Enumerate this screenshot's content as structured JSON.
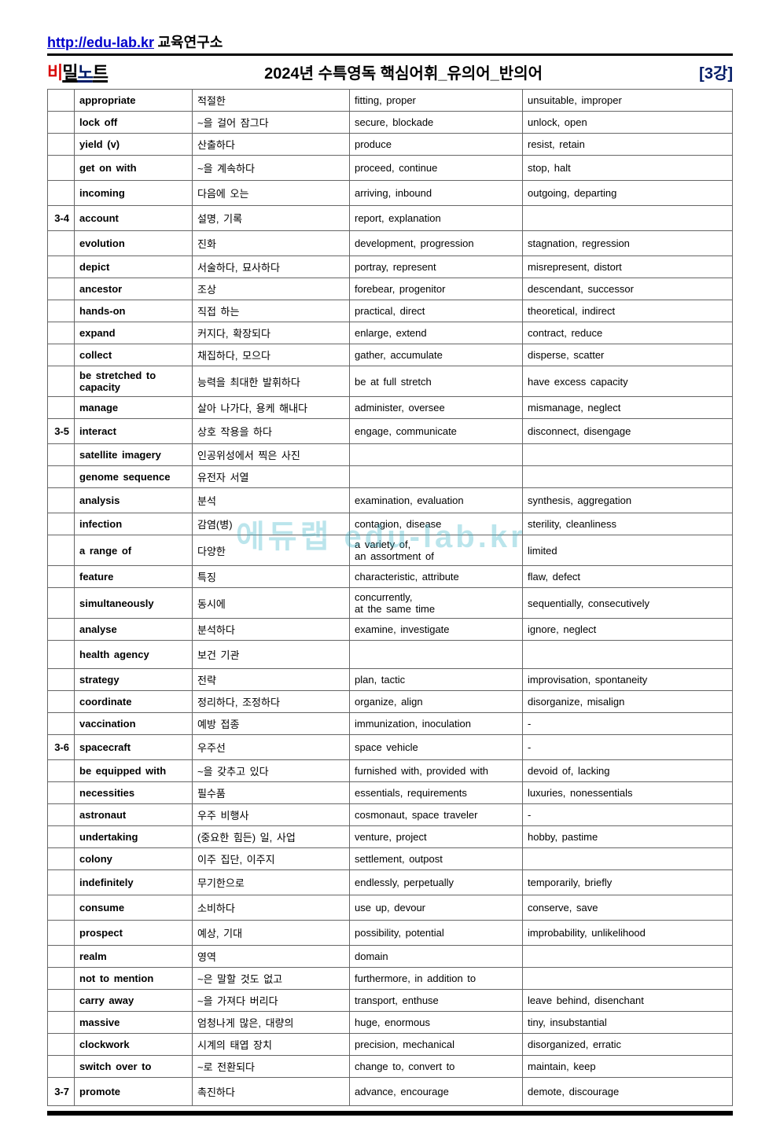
{
  "header": {
    "url": "http://edu-lab.kr",
    "suffix": " 교육연구소",
    "logo_parts": [
      "비",
      "밀",
      "노",
      "트"
    ],
    "title": "2024년  수특영독   핵심어휘_유의어_반의어",
    "badge": "[3강]"
  },
  "watermark": "에듀랩 edu-lab.kr",
  "rows": [
    {
      "idx": "",
      "eng": "appropriate",
      "kor": "적절한",
      "syn": "fitting, proper",
      "ant": "unsuitable, improper",
      "h": ""
    },
    {
      "idx": "",
      "eng": "lock off",
      "kor": "~을 걸어 잠그다",
      "syn": "secure, blockade",
      "ant": "unlock, open",
      "h": ""
    },
    {
      "idx": "",
      "eng": "yield (v)",
      "kor": "산출하다",
      "syn": "produce",
      "ant": "resist, retain",
      "h": ""
    },
    {
      "idx": "",
      "eng": "get on with",
      "kor": "~을 계속하다",
      "syn": "proceed, continue",
      "ant": "stop, halt",
      "h": "tall"
    },
    {
      "idx": "",
      "eng": "incoming",
      "kor": "다음에 오는",
      "syn": "arriving, inbound",
      "ant": "outgoing, departing",
      "h": "tall"
    },
    {
      "idx": "3-4",
      "eng": "account",
      "kor": "설명, 기록",
      "syn": "report, explanation",
      "ant": "",
      "h": "tall"
    },
    {
      "idx": "",
      "eng": "evolution",
      "kor": "진화",
      "syn": "development, progression",
      "ant": "stagnation, regression",
      "h": "tall"
    },
    {
      "idx": "",
      "eng": "depict",
      "kor": "서술하다, 묘사하다",
      "syn": "portray, represent",
      "ant": "misrepresent, distort",
      "h": ""
    },
    {
      "idx": "",
      "eng": "ancestor",
      "kor": "조상",
      "syn": "forebear, progenitor",
      "ant": "descendant, successor",
      "h": ""
    },
    {
      "idx": "",
      "eng": "hands-on",
      "kor": "직접 하는",
      "syn": "practical, direct",
      "ant": "theoretical, indirect",
      "h": ""
    },
    {
      "idx": "",
      "eng": "expand",
      "kor": "커지다, 확장되다",
      "syn": "enlarge, extend",
      "ant": "contract, reduce",
      "h": ""
    },
    {
      "idx": "",
      "eng": "collect",
      "kor": "채집하다, 모으다",
      "syn": "gather, accumulate",
      "ant": "disperse, scatter",
      "h": ""
    },
    {
      "idx": "",
      "eng": "be stretched to capacity",
      "kor": "능력을 최대한 발휘하다",
      "syn": "be at full stretch",
      "ant": "have excess capacity",
      "h": "tall"
    },
    {
      "idx": "",
      "eng": "manage",
      "kor": "살아 나가다, 용케 해내다",
      "syn": "administer, oversee",
      "ant": "mismanage, neglect",
      "h": ""
    },
    {
      "idx": "3-5",
      "eng": "interact",
      "kor": "상호 작용을 하다",
      "syn": "engage, communicate",
      "ant": "disconnect, disengage",
      "h": "tall"
    },
    {
      "idx": "",
      "eng": "satellite imagery",
      "kor": "인공위성에서 찍은 사진",
      "syn": "",
      "ant": "",
      "h": ""
    },
    {
      "idx": "",
      "eng": "genome sequence",
      "kor": "유전자 서열",
      "syn": "",
      "ant": "",
      "h": ""
    },
    {
      "idx": "",
      "eng": "analysis",
      "kor": "분석",
      "syn": "examination, evaluation",
      "ant": "synthesis, aggregation",
      "h": "tall"
    },
    {
      "idx": "",
      "eng": "infection",
      "kor": "감염(병)",
      "syn": "contagion, disease",
      "ant": "sterility, cleanliness",
      "h": ""
    },
    {
      "idx": "",
      "eng": "a range of",
      "kor": "다양한",
      "syn": "a variety of,\nan assortment of",
      "ant": "limited",
      "h": "tall"
    },
    {
      "idx": "",
      "eng": "feature",
      "kor": "특징",
      "syn": "characteristic, attribute",
      "ant": "flaw, defect",
      "h": ""
    },
    {
      "idx": "",
      "eng": "simultaneously",
      "kor": "동시에",
      "syn": "concurrently,\nat the same time",
      "ant": "sequentially, consecutively",
      "h": "tall"
    },
    {
      "idx": "",
      "eng": "analyse",
      "kor": "분석하다",
      "syn": "examine, investigate",
      "ant": "ignore, neglect",
      "h": ""
    },
    {
      "idx": "",
      "eng": "health agency",
      "kor": "보건 기관",
      "syn": "",
      "ant": "",
      "h": "xtall"
    },
    {
      "idx": "",
      "eng": "strategy",
      "kor": "전략",
      "syn": "plan, tactic",
      "ant": "improvisation, spontaneity",
      "h": ""
    },
    {
      "idx": "",
      "eng": "coordinate",
      "kor": "정리하다, 조정하다",
      "syn": "organize, align",
      "ant": "disorganize, misalign",
      "h": ""
    },
    {
      "idx": "",
      "eng": "vaccination",
      "kor": "예방 접종",
      "syn": "immunization, inoculation",
      "ant": "-",
      "h": ""
    },
    {
      "idx": "3-6",
      "eng": "spacecraft",
      "kor": "우주선",
      "syn": "space vehicle",
      "ant": "-",
      "h": "tall"
    },
    {
      "idx": "",
      "eng": "be equipped with",
      "kor": "~을 갖추고 있다",
      "syn": "furnished with, provided with",
      "ant": "devoid of, lacking",
      "h": ""
    },
    {
      "idx": "",
      "eng": "necessities",
      "kor": "필수품",
      "syn": "essentials, requirements",
      "ant": "luxuries, nonessentials",
      "h": ""
    },
    {
      "idx": "",
      "eng": "astronaut",
      "kor": "우주 비행사",
      "syn": "cosmonaut, space traveler",
      "ant": "-",
      "h": ""
    },
    {
      "idx": "",
      "eng": "undertaking",
      "kor": "(중요한 힘든) 일, 사업",
      "syn": "venture, project",
      "ant": "hobby, pastime",
      "h": ""
    },
    {
      "idx": "",
      "eng": "colony",
      "kor": "이주 집단, 이주지",
      "syn": "settlement, outpost",
      "ant": "",
      "h": ""
    },
    {
      "idx": "",
      "eng": "indefinitely",
      "kor": "무기한으로",
      "syn": "endlessly, perpetually",
      "ant": "temporarily, briefly",
      "h": "tall"
    },
    {
      "idx": "",
      "eng": "consume",
      "kor": "소비하다",
      "syn": "use up, devour",
      "ant": "conserve, save",
      "h": "tall"
    },
    {
      "idx": "",
      "eng": "prospect",
      "kor": "예상, 기대",
      "syn": "possibility, potential",
      "ant": "improbability, unlikelihood",
      "h": "tall"
    },
    {
      "idx": "",
      "eng": "realm",
      "kor": "영역",
      "syn": "domain",
      "ant": "",
      "h": ""
    },
    {
      "idx": "",
      "eng": "not to mention",
      "kor": "~은 말할 것도 없고",
      "syn": "furthermore, in addition to",
      "ant": "",
      "h": ""
    },
    {
      "idx": "",
      "eng": "carry away",
      "kor": "~을 가져다 버리다",
      "syn": "transport, enthuse",
      "ant": "leave behind, disenchant",
      "h": ""
    },
    {
      "idx": "",
      "eng": "massive",
      "kor": "엄청나게 많은, 대량의",
      "syn": "huge, enormous",
      "ant": "tiny, insubstantial",
      "h": ""
    },
    {
      "idx": "",
      "eng": "clockwork",
      "kor": "시계의 태엽 장치",
      "syn": "precision, mechanical",
      "ant": "disorganized, erratic",
      "h": ""
    },
    {
      "idx": "",
      "eng": "switch over to",
      "kor": "~로 전환되다",
      "syn": "change to, convert to",
      "ant": "maintain, keep",
      "h": ""
    },
    {
      "idx": "3-7",
      "eng": "promote",
      "kor": "촉진하다",
      "syn": "advance, encourage",
      "ant": "demote, discourage",
      "h": "xtall"
    }
  ]
}
